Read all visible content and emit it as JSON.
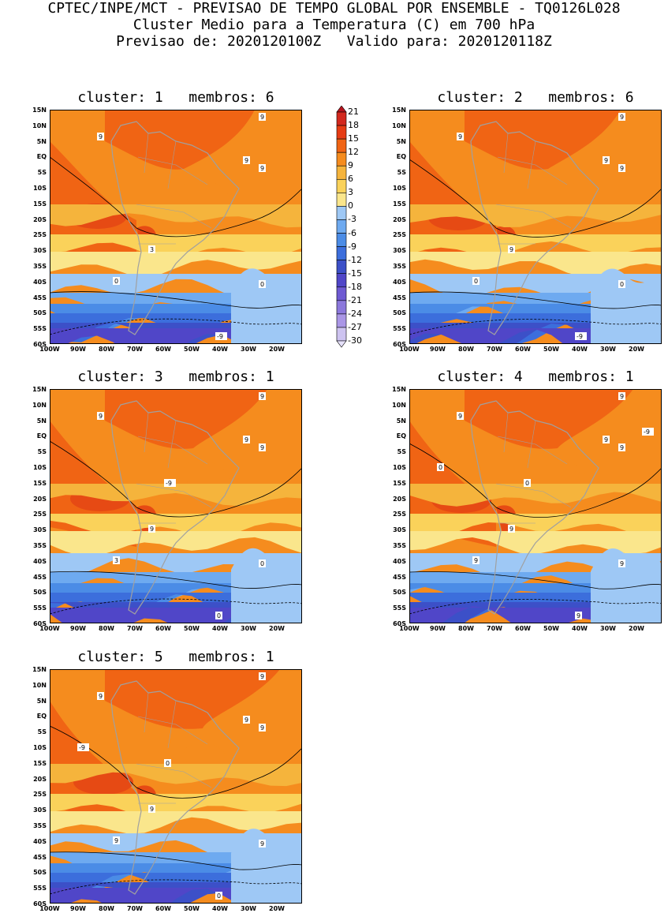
{
  "header": {
    "line1": "CPTEC/INPE/MCT - PREVISAO DE TEMPO GLOBAL POR ENSEMBLE - TQ0126L028",
    "line2": "Cluster Medio para a Temperatura (C) em 700 hPa",
    "line3": "Previsao de: 2020120100Z   Valido para: 2020120118Z"
  },
  "lat_labels": [
    "15N",
    "10N",
    "5N",
    "EQ",
    "5S",
    "10S",
    "15S",
    "20S",
    "25S",
    "30S",
    "35S",
    "40S",
    "45S",
    "50S",
    "55S",
    "60S"
  ],
  "lon_labels": [
    "100W",
    "90W",
    "80W",
    "70W",
    "60W",
    "50W",
    "40W",
    "30W",
    "20W"
  ],
  "panels": [
    {
      "title": "cluster: 1   membros: 6",
      "contour_labels": [
        "9",
        "9",
        "9",
        "9",
        "3",
        "0",
        "0",
        "-9"
      ]
    },
    {
      "title": "cluster: 2   membros: 6",
      "contour_labels": [
        "9",
        "9",
        "9",
        "9",
        "9",
        "0",
        "0",
        "-9"
      ]
    },
    {
      "title": "cluster: 3   membros: 1",
      "contour_labels": [
        "9",
        "9",
        "9",
        "9",
        "9",
        "3",
        "0",
        "0",
        "-9"
      ]
    },
    {
      "title": "cluster: 4   membros: 1",
      "contour_labels": [
        "9",
        "9",
        "9",
        "9",
        "9",
        "9",
        "9",
        "9",
        "0",
        "0",
        "-9"
      ]
    },
    {
      "title": "cluster: 5   membros: 1",
      "contour_labels": [
        "9",
        "9",
        "9",
        "9",
        "9",
        "9",
        "9",
        "0",
        "0",
        "-9"
      ]
    }
  ],
  "colorbar": {
    "labels": [
      "21",
      "18",
      "15",
      "12",
      "9",
      "6",
      "3",
      "0",
      "-3",
      "-6",
      "-9",
      "-12",
      "-15",
      "-18",
      "-21",
      "-24",
      "-27",
      "-30"
    ],
    "colors": [
      "#b4141e",
      "#d2281e",
      "#e63c14",
      "#f06414",
      "#f58c1e",
      "#f5b43c",
      "#fad25a",
      "#fae68c",
      "#9ec8f5",
      "#6eaaf0",
      "#4b8ce6",
      "#3c6edc",
      "#3c50c8",
      "#5046c8",
      "#6e5ad2",
      "#8c78dc",
      "#aa96e6",
      "#cdc3f0",
      "#e6e1fa"
    ]
  }
}
